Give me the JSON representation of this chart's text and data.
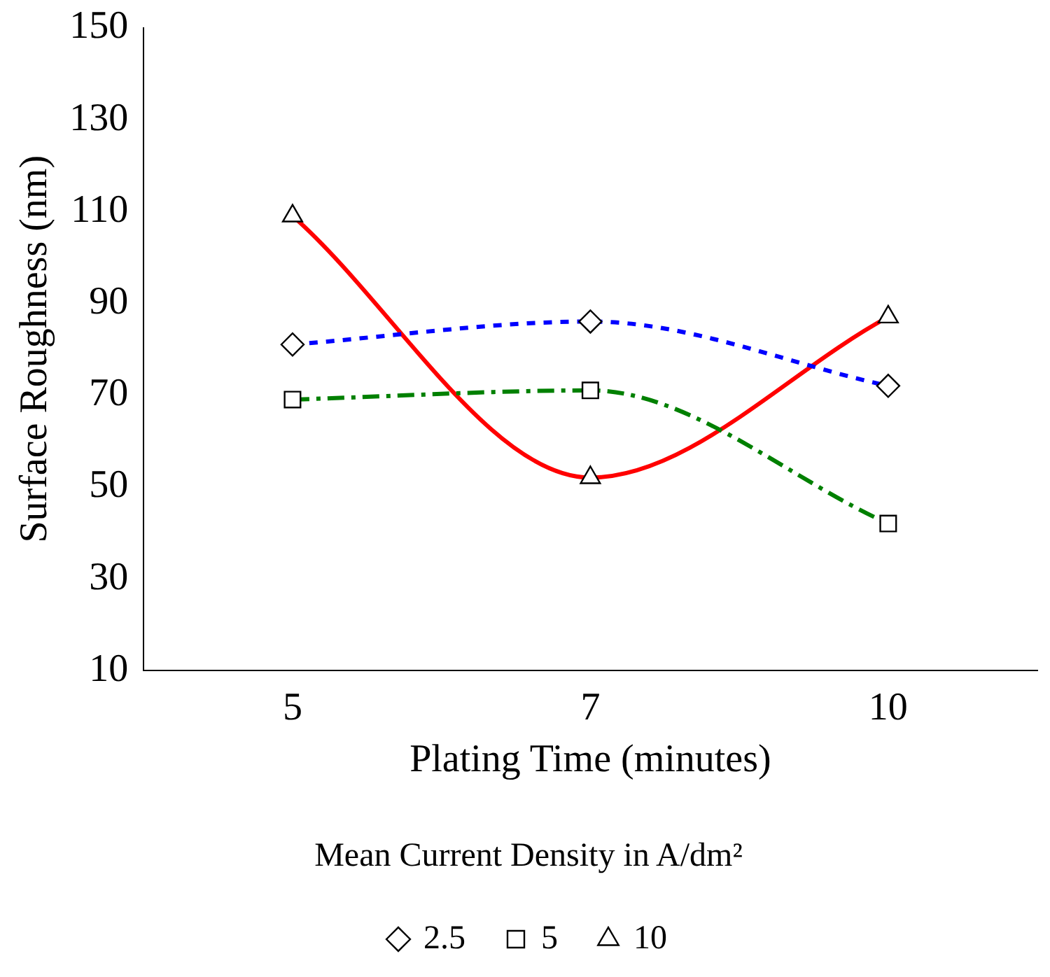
{
  "chart_data": {
    "type": "line",
    "xlabel": "Plating Time (minutes)",
    "ylabel": "Surface Roughness (nm)",
    "legend_title": "Mean Current Density in A/dm²",
    "categories": [
      "5",
      "7",
      "10"
    ],
    "series": [
      {
        "name": "2.5",
        "color": "#0000ff",
        "values": [
          81,
          86,
          72
        ],
        "marker": "diamond",
        "line_style": "dotted"
      },
      {
        "name": "5",
        "color": "#008000",
        "values": [
          69,
          71,
          42
        ],
        "marker": "square",
        "line_style": "dashed"
      },
      {
        "name": "10",
        "color": "#ff0000",
        "values": [
          109,
          52,
          87
        ],
        "marker": "triangle",
        "line_style": "solid"
      }
    ],
    "ylim": [
      10,
      150
    ],
    "yticks": [
      10,
      30,
      50,
      70,
      90,
      110,
      130,
      150
    ],
    "grid": false,
    "legend": "bottom"
  }
}
